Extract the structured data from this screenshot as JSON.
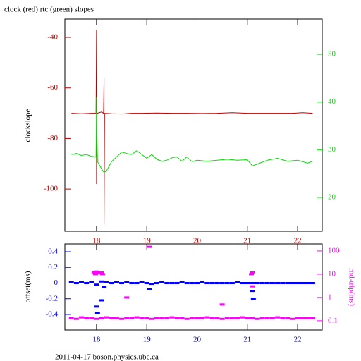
{
  "chart_data": [
    {
      "type": "line",
      "title": "clock (red) rtc (green) slopes",
      "ylabel": "clockslope",
      "xlim": [
        17.37,
        22.49
      ],
      "xticks": [
        18,
        19,
        20,
        21,
        22
      ],
      "xtick_color": "#c00000",
      "ylim": [
        -116.7,
        -32.75
      ],
      "yticks": [
        -40,
        -60,
        -80,
        -100
      ],
      "y2lim": [
        12.9,
        57.4
      ],
      "y2ticks": [
        20,
        30,
        40,
        50
      ],
      "series": [
        {
          "color": "#c00000",
          "axis": "y",
          "x": [
            17.5,
            17.7,
            17.9,
            17.99,
            18.0,
            18.0,
            18.01,
            18.1,
            18.14,
            18.15,
            18.15,
            18.16,
            18.3,
            18.5,
            18.7,
            18.9,
            19.2,
            19.5,
            19.8,
            20.1,
            20.4,
            20.7,
            21.0,
            21.3,
            21.6,
            21.9,
            22.1,
            22.3
          ],
          "values": [
            -70,
            -70.2,
            -70,
            -70,
            -37,
            -98,
            -70,
            -69.5,
            -70,
            -56,
            -114,
            -70,
            -70.2,
            -70.3,
            -70,
            -70,
            -69.9,
            -70,
            -70,
            -70.1,
            -70,
            -69.8,
            -70,
            -70,
            -70,
            -70,
            -69.8,
            -70
          ]
        },
        {
          "color": "#00e000",
          "axis": "y2",
          "x": [
            17.5,
            17.6,
            17.7,
            17.8,
            17.9,
            17.99,
            18.0,
            18.0,
            18.02,
            18.1,
            18.15,
            18.2,
            18.3,
            18.4,
            18.5,
            18.6,
            18.7,
            18.8,
            18.9,
            19.0,
            19.1,
            19.2,
            19.3,
            19.4,
            19.5,
            19.6,
            19.7,
            19.8,
            19.9,
            20.0,
            20.2,
            20.4,
            20.6,
            20.8,
            21.0,
            21.1,
            21.2,
            21.4,
            21.6,
            21.8,
            22.0,
            22.2,
            22.3
          ],
          "values": [
            29.0,
            29.2,
            28.8,
            29.0,
            28.6,
            28.5,
            41,
            37.7,
            27.5,
            26.0,
            25.2,
            25.6,
            27.5,
            28.5,
            29.5,
            29.2,
            29.0,
            29.8,
            29.0,
            28.2,
            29.0,
            28.0,
            27.6,
            27.8,
            28.3,
            28.5,
            27.6,
            28.5,
            27.5,
            27.8,
            27.6,
            27.8,
            28.0,
            27.8,
            27.9,
            26.6,
            27.0,
            27.8,
            28.2,
            27.6,
            27.8,
            27.2,
            27.6
          ]
        }
      ]
    },
    {
      "type": "scatter",
      "ylabel": "offset(ms)",
      "y2label": "rnd-trip(ms)",
      "xlim": [
        17.37,
        22.49
      ],
      "xticks": [
        18,
        19,
        20,
        21,
        22
      ],
      "xtick_color": "#000080",
      "ylim": [
        -0.598,
        0.499
      ],
      "yticks": [
        0.4,
        0.2,
        0,
        -0.2,
        -0.4
      ],
      "y2lim": [
        0.04,
        200
      ],
      "y2ticks": [
        100,
        10,
        1,
        0.1
      ],
      "y2scale": "log",
      "series": [
        {
          "color": "#0000ff",
          "axis": "y",
          "x": [
            17.5,
            17.6,
            17.7,
            17.8,
            17.9,
            18.0,
            18.1,
            18.2,
            18.3,
            18.4,
            18.5,
            18.6,
            18.7,
            18.8,
            18.9,
            19.0,
            19.1,
            19.2,
            19.3,
            19.4,
            19.5,
            19.6,
            19.7,
            19.8,
            19.9,
            20.0,
            20.1,
            20.2,
            20.3,
            20.4,
            20.5,
            20.6,
            20.7,
            20.8,
            20.9,
            21.0,
            21.1,
            21.2,
            21.3,
            21.4,
            21.5,
            21.6,
            21.7,
            21.8,
            21.9,
            22.0,
            22.1,
            22.2,
            22.3,
            18.0,
            18.02,
            18.1,
            18.15,
            19.05,
            21.1,
            21.12
          ],
          "values": [
            0.01,
            0,
            0.01,
            0,
            0.01,
            -0.02,
            0.02,
            0.01,
            0,
            0.01,
            0,
            0.01,
            0,
            0,
            0.01,
            0,
            -0.01,
            0,
            0.01,
            0,
            0,
            0,
            0.01,
            0,
            0,
            0,
            0.01,
            0,
            0,
            0,
            0,
            0,
            0,
            0.01,
            0,
            0,
            0,
            0,
            0,
            0,
            0,
            0,
            0,
            0,
            0,
            0,
            0,
            0,
            0,
            -0.3,
            -0.38,
            -0.22,
            -0.05,
            -0.08,
            -0.1,
            -0.2
          ]
        },
        {
          "color": "#ff00ff",
          "axis": "y2",
          "x": [
            17.5,
            17.6,
            17.7,
            17.8,
            17.9,
            18.0,
            18.1,
            18.2,
            18.3,
            18.4,
            18.5,
            18.6,
            18.7,
            18.8,
            18.9,
            19.0,
            19.1,
            19.2,
            19.3,
            19.4,
            19.5,
            19.6,
            19.7,
            19.8,
            19.9,
            20.0,
            20.1,
            20.2,
            20.3,
            20.4,
            20.5,
            20.6,
            20.7,
            20.8,
            20.9,
            21.0,
            21.1,
            21.2,
            21.3,
            21.4,
            21.5,
            21.6,
            21.7,
            21.8,
            21.9,
            22.0,
            22.1,
            22.2,
            22.3,
            17.95,
            17.98,
            18.0,
            18.05,
            18.1,
            18.12,
            21.08,
            21.1,
            21.1,
            19.05,
            20.5,
            18.6
          ],
          "values": [
            0.13,
            0.12,
            0.14,
            0.13,
            0.13,
            0.12,
            0.13,
            0.14,
            0.13,
            0.13,
            0.12,
            0.13,
            0.13,
            0.14,
            0.13,
            0.13,
            0.12,
            0.13,
            0.13,
            0.13,
            0.14,
            0.13,
            0.13,
            0.12,
            0.13,
            0.13,
            0.13,
            0.14,
            0.13,
            0.13,
            0.12,
            0.13,
            0.13,
            0.13,
            0.14,
            0.13,
            0.13,
            0.12,
            0.13,
            0.13,
            0.13,
            0.14,
            0.13,
            0.13,
            0.12,
            0.13,
            0.13,
            0.13,
            0.13,
            12,
            10,
            13,
            11,
            12,
            10,
            10,
            12,
            3,
            150,
            0.5,
            1
          ]
        }
      ]
    }
  ],
  "footer": "2011-04-17 boson.physics.ubc.ca"
}
